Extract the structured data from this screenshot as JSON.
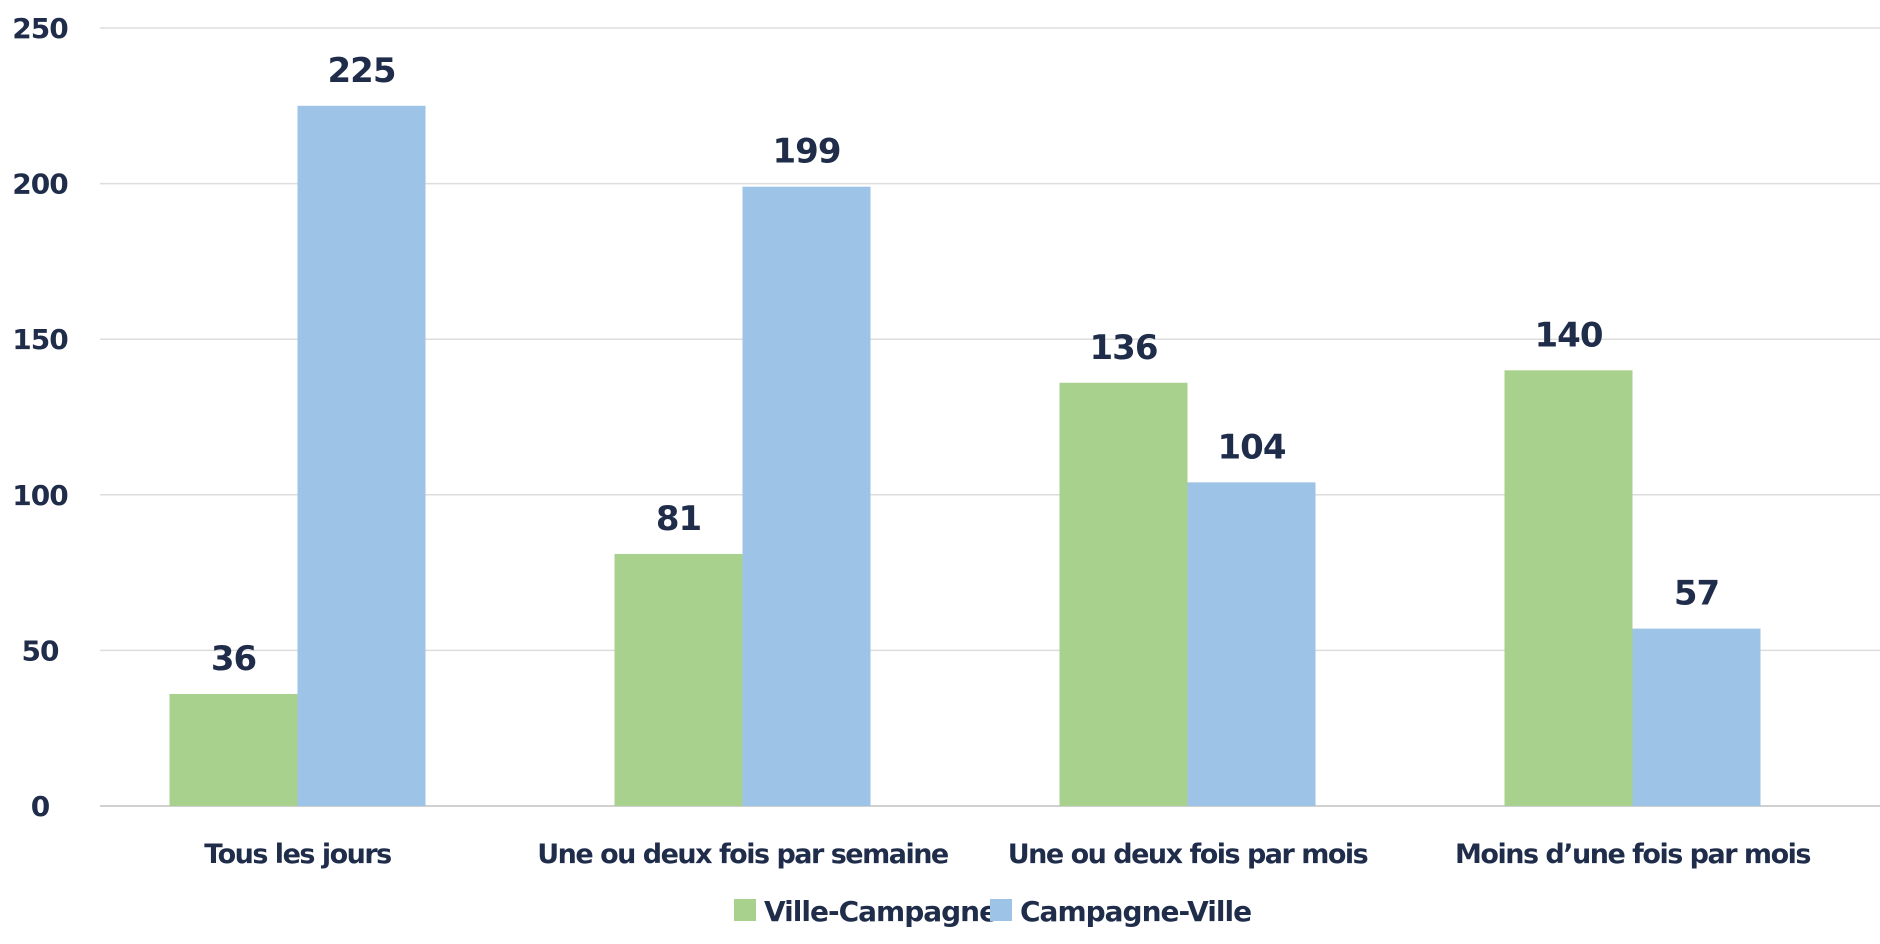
{
  "chart_data": {
    "type": "bar",
    "title": "",
    "xlabel": "",
    "ylabel": "",
    "categories": [
      "Tous les jours",
      "Une ou deux fois par semaine",
      "Une ou deux fois par mois",
      "Moins d’une fois par mois"
    ],
    "series": [
      {
        "name": "Ville-Campagne",
        "color": "#a9d18e",
        "values": [
          36,
          81,
          136,
          140
        ]
      },
      {
        "name": "Campagne-Ville",
        "color": "#9dc3e6",
        "values": [
          225,
          199,
          104,
          57
        ]
      }
    ],
    "ylim": [
      0,
      250
    ],
    "yticks": [
      0,
      50,
      100,
      150,
      200,
      250
    ],
    "grid": true,
    "data_labels": true,
    "legend": "bottom-center"
  }
}
